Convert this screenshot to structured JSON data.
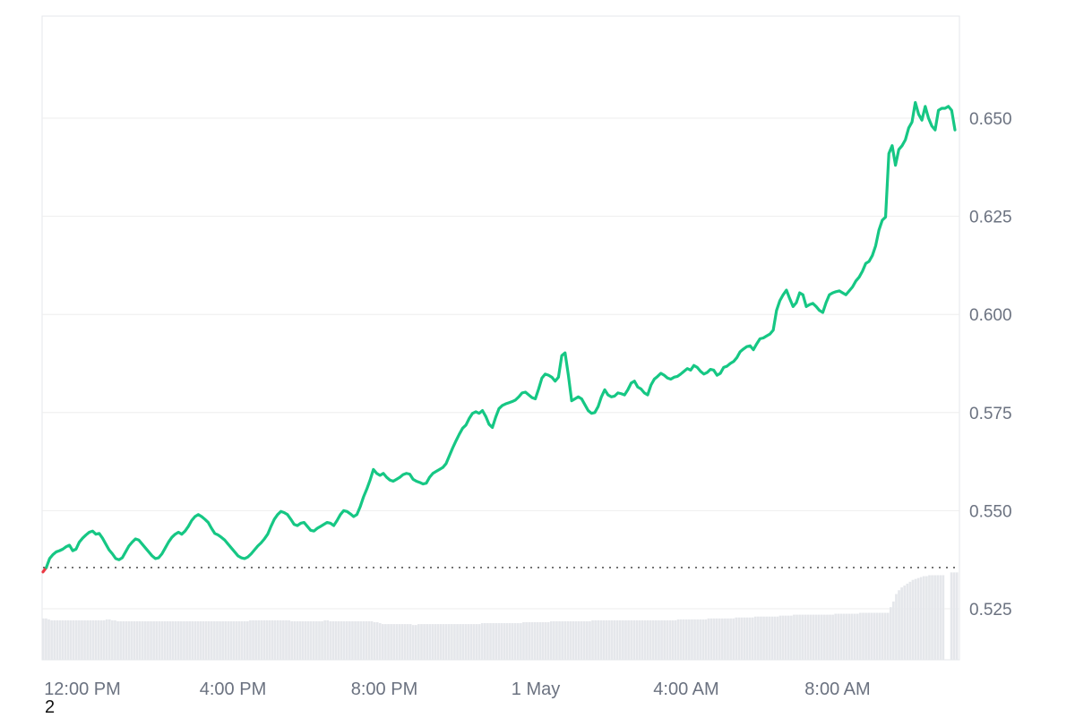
{
  "corner_label": "2",
  "chart_data": {
    "type": "area",
    "title": "",
    "xlabel": "",
    "ylabel": "",
    "x_ticks": [
      "12:00 PM",
      "4:00 PM",
      "8:00 PM",
      "1 May",
      "4:00 AM",
      "8:00 AM"
    ],
    "y_ticks": [
      "0.525",
      "0.550",
      "0.575",
      "0.600",
      "0.625",
      "0.650"
    ],
    "ylim": [
      0.512,
      0.676
    ],
    "baseline": 0.5355,
    "colors": {
      "up": "#16c784",
      "down": "#ea3943",
      "fill": "#16c784",
      "volume": "#e5e7eb",
      "grid": "#eeeeee"
    },
    "grid": true,
    "series": [
      {
        "values": [
          0.5344,
          0.5355,
          0.5378,
          0.5388,
          0.5395,
          0.5398,
          0.5402,
          0.5408,
          0.5412,
          0.5398,
          0.5402,
          0.542,
          0.543,
          0.5438,
          0.5445,
          0.5448,
          0.544,
          0.5442,
          0.543,
          0.5415,
          0.54,
          0.539,
          0.5378,
          0.5375,
          0.538,
          0.5395,
          0.541,
          0.542,
          0.5428,
          0.5425,
          0.5415,
          0.5405,
          0.5395,
          0.5385,
          0.5378,
          0.538,
          0.539,
          0.5405,
          0.542,
          0.5432,
          0.544,
          0.5445,
          0.544,
          0.5448,
          0.546,
          0.5475,
          0.5485,
          0.549,
          0.5485,
          0.5478,
          0.547,
          0.5455,
          0.5442,
          0.5438,
          0.5432,
          0.5425,
          0.5415,
          0.5405,
          0.5395,
          0.5385,
          0.538,
          0.5378,
          0.5382,
          0.539,
          0.54,
          0.541,
          0.5418,
          0.5428,
          0.544,
          0.546,
          0.5478,
          0.549,
          0.5498,
          0.5495,
          0.549,
          0.5478,
          0.5465,
          0.5462,
          0.5468,
          0.547,
          0.546,
          0.545,
          0.5448,
          0.5455,
          0.546,
          0.5465,
          0.547,
          0.5468,
          0.5462,
          0.5475,
          0.549,
          0.55,
          0.5498,
          0.5492,
          0.5485,
          0.549,
          0.551,
          0.5535,
          0.5555,
          0.5578,
          0.5605,
          0.5595,
          0.559,
          0.5595,
          0.5585,
          0.5578,
          0.5575,
          0.558,
          0.5585,
          0.5592,
          0.5595,
          0.5593,
          0.558,
          0.5575,
          0.5572,
          0.5568,
          0.557,
          0.5585,
          0.5595,
          0.56,
          0.5605,
          0.561,
          0.562,
          0.564,
          0.566,
          0.5678,
          0.5695,
          0.571,
          0.5718,
          0.5735,
          0.5748,
          0.5752,
          0.5748,
          0.5755,
          0.574,
          0.572,
          0.5712,
          0.5738,
          0.576,
          0.5768,
          0.5772,
          0.5775,
          0.5778,
          0.5782,
          0.579,
          0.58,
          0.5802,
          0.5795,
          0.5788,
          0.5785,
          0.581,
          0.5838,
          0.5848,
          0.5845,
          0.584,
          0.583,
          0.584,
          0.5895,
          0.5902,
          0.5845,
          0.578,
          0.5785,
          0.579,
          0.5785,
          0.577,
          0.5755,
          0.5748,
          0.575,
          0.5765,
          0.579,
          0.5808,
          0.5795,
          0.579,
          0.5792,
          0.58,
          0.5798,
          0.5795,
          0.5808,
          0.5825,
          0.583,
          0.5815,
          0.581,
          0.58,
          0.5795,
          0.582,
          0.5835,
          0.5842,
          0.585,
          0.5845,
          0.5838,
          0.5835,
          0.584,
          0.5842,
          0.5848,
          0.5855,
          0.5862,
          0.5858,
          0.587,
          0.5865,
          0.5855,
          0.5848,
          0.5852,
          0.586,
          0.5858,
          0.5845,
          0.585,
          0.5865,
          0.5868,
          0.5875,
          0.588,
          0.589,
          0.5905,
          0.5912,
          0.5918,
          0.592,
          0.591,
          0.5925,
          0.5938,
          0.594,
          0.5945,
          0.595,
          0.596,
          0.601,
          0.6035,
          0.605,
          0.6062,
          0.604,
          0.602,
          0.603,
          0.6055,
          0.605,
          0.602,
          0.6025,
          0.6028,
          0.602,
          0.601,
          0.6005,
          0.603,
          0.605,
          0.6055,
          0.6058,
          0.606,
          0.6055,
          0.605,
          0.606,
          0.607,
          0.6085,
          0.6095,
          0.611,
          0.613,
          0.6135,
          0.615,
          0.6175,
          0.6215,
          0.624,
          0.6248,
          0.641,
          0.643,
          0.638,
          0.642,
          0.643,
          0.6445,
          0.6475,
          0.649,
          0.654,
          0.651,
          0.6495,
          0.653,
          0.65,
          0.648,
          0.647,
          0.652,
          0.6525,
          0.6525,
          0.653,
          0.652,
          0.647
        ]
      }
    ],
    "volume": [
      0.44,
      0.44,
      0.43,
      0.42,
      0.42,
      0.42,
      0.42,
      0.42,
      0.42,
      0.42,
      0.42,
      0.42,
      0.42,
      0.42,
      0.42,
      0.42,
      0.42,
      0.42,
      0.42,
      0.42,
      0.42,
      0.42,
      0.42,
      0.43,
      0.43,
      0.42,
      0.42,
      0.41,
      0.41,
      0.41,
      0.41,
      0.41,
      0.41,
      0.41,
      0.41,
      0.41,
      0.41,
      0.41,
      0.41,
      0.41,
      0.41,
      0.41,
      0.41,
      0.41,
      0.41,
      0.41,
      0.41,
      0.41,
      0.41,
      0.41,
      0.41,
      0.41,
      0.41,
      0.41,
      0.41,
      0.41,
      0.41,
      0.41,
      0.41,
      0.41,
      0.41,
      0.41,
      0.41,
      0.41,
      0.41,
      0.41,
      0.41,
      0.41,
      0.41,
      0.41,
      0.41,
      0.41,
      0.41,
      0.41,
      0.41,
      0.42,
      0.42,
      0.42,
      0.42,
      0.42,
      0.42,
      0.42,
      0.42,
      0.42,
      0.42,
      0.42,
      0.42,
      0.42,
      0.42,
      0.42,
      0.41,
      0.41,
      0.41,
      0.41,
      0.41,
      0.41,
      0.41,
      0.41,
      0.41,
      0.41,
      0.41,
      0.41,
      0.42,
      0.42,
      0.41,
      0.41,
      0.41,
      0.41,
      0.41,
      0.41,
      0.41,
      0.41,
      0.41,
      0.41,
      0.41,
      0.41,
      0.41,
      0.41,
      0.41,
      0.41,
      0.4,
      0.4,
      0.39,
      0.38,
      0.38,
      0.38,
      0.38,
      0.38,
      0.38,
      0.38,
      0.38,
      0.38,
      0.38,
      0.38,
      0.37,
      0.37,
      0.38,
      0.38,
      0.38,
      0.38,
      0.38,
      0.38,
      0.38,
      0.38,
      0.38,
      0.38,
      0.38,
      0.38,
      0.38,
      0.38,
      0.38,
      0.38,
      0.38,
      0.38,
      0.38,
      0.38,
      0.38,
      0.38,
      0.38,
      0.39,
      0.39,
      0.39,
      0.39,
      0.39,
      0.39,
      0.39,
      0.39,
      0.39,
      0.39,
      0.39,
      0.39,
      0.39,
      0.39,
      0.39,
      0.4,
      0.4,
      0.4,
      0.4,
      0.4,
      0.4,
      0.4,
      0.4,
      0.4,
      0.4,
      0.41,
      0.41,
      0.41,
      0.41,
      0.41,
      0.41,
      0.41,
      0.41,
      0.41,
      0.41,
      0.41,
      0.41,
      0.41,
      0.41,
      0.41,
      0.42,
      0.42,
      0.42,
      0.42,
      0.42,
      0.42,
      0.42,
      0.42,
      0.42,
      0.42,
      0.42,
      0.42,
      0.42,
      0.42,
      0.42,
      0.42,
      0.42,
      0.42,
      0.42,
      0.42,
      0.42,
      0.42,
      0.42,
      0.42,
      0.42,
      0.42,
      0.42,
      0.42,
      0.42,
      0.42,
      0.42,
      0.43,
      0.43,
      0.43,
      0.43,
      0.43,
      0.43,
      0.43,
      0.43,
      0.43,
      0.43,
      0.43,
      0.44,
      0.44,
      0.44,
      0.44,
      0.44,
      0.44,
      0.44,
      0.44,
      0.44,
      0.44,
      0.45,
      0.45,
      0.45,
      0.45,
      0.45,
      0.45,
      0.45,
      0.46,
      0.46,
      0.46,
      0.46,
      0.46,
      0.46,
      0.46,
      0.46,
      0.46,
      0.47,
      0.47,
      0.47,
      0.47,
      0.47,
      0.48,
      0.48,
      0.48,
      0.48,
      0.48,
      0.48,
      0.48,
      0.48,
      0.48,
      0.48,
      0.48,
      0.48,
      0.48,
      0.48,
      0.48,
      0.49,
      0.49,
      0.49,
      0.49,
      0.49,
      0.49,
      0.49,
      0.49,
      0.49,
      0.5,
      0.5,
      0.5,
      0.5,
      0.5,
      0.5,
      0.5,
      0.5,
      0.5,
      0.5,
      0.5,
      0.56,
      0.62,
      0.7,
      0.74,
      0.77,
      0.79,
      0.81,
      0.83,
      0.85,
      0.86,
      0.87,
      0.88,
      0.89,
      0.89,
      0.9,
      0.9,
      0.9,
      0.9,
      0.9,
      0.9,
      0,
      0,
      0.93,
      0.93,
      0.93
    ]
  }
}
